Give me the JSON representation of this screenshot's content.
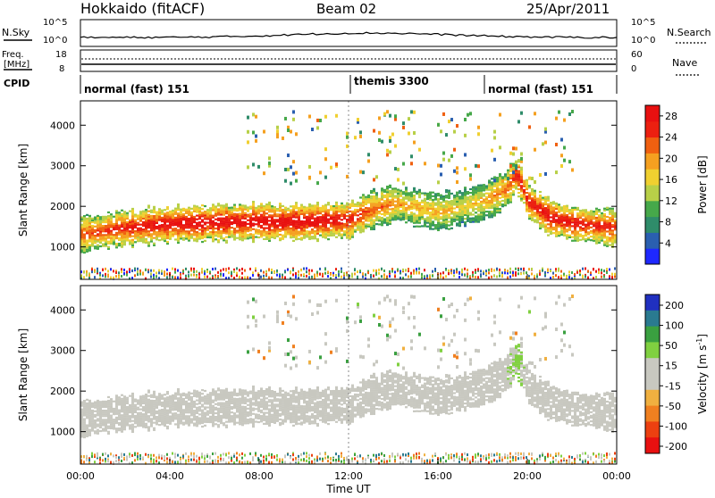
{
  "header": {
    "station": "Hokkaido (fitACF)",
    "beam": "Beam 02",
    "date": "25/Apr/2011"
  },
  "top_panel": {
    "left_label": "N.Sky",
    "left_ticks": [
      "10^5",
      "10^0"
    ],
    "right_ticks": [
      "10^5",
      "10^0"
    ],
    "right_label": "N.Search"
  },
  "freq_panel": {
    "left_label_1": "Freq.",
    "left_label_2": "[MHz]",
    "left_ticks": [
      "18",
      "8"
    ],
    "right_ticks": [
      "60",
      "0"
    ],
    "right_label": "Nave"
  },
  "cpid": {
    "label": "CPID",
    "segments": [
      {
        "label": "normal (fast) 151",
        "start_h": 0
      },
      {
        "label": "themis 3300",
        "start_h": 12
      },
      {
        "label": "normal (fast) 151",
        "start_h": 18
      }
    ]
  },
  "colors": {
    "power_scale": [
      "#1e28ff",
      "#2a5fb0",
      "#2f8c6a",
      "#46a84a",
      "#b8d048",
      "#f0d030",
      "#f5a020",
      "#f06010",
      "#ec2010",
      "#e81010"
    ],
    "velocity_scale": [
      "#e81010",
      "#ec4010",
      "#f08020",
      "#f0b040",
      "#c8c8c0",
      "#c8c8c0",
      "#80d040",
      "#3aa040",
      "#2a7a90",
      "#2030c0"
    ]
  },
  "chart_data": [
    {
      "type": "heatmap",
      "title": "",
      "xlabel": "Time UT",
      "ylabel": "Slant Range [km]",
      "xlim": [
        0,
        24
      ],
      "ylim": [
        200,
        4600
      ],
      "x_ticks": [
        "00:00",
        "04:00",
        "08:00",
        "12:00",
        "16:00",
        "20:00",
        "00:00"
      ],
      "y_ticks": [
        "1000",
        "2000",
        "3000",
        "4000"
      ],
      "colorbar": {
        "label": "Power [dB]",
        "ticks": [
          "28",
          "24",
          "20",
          "16",
          "12",
          "8",
          "4"
        ],
        "range": [
          0,
          30
        ]
      },
      "main_echo_band": {
        "hours": [
          0,
          2,
          4,
          6,
          8,
          10,
          12,
          13,
          14,
          15,
          16,
          17,
          18,
          19,
          19.5,
          20,
          21,
          22,
          24
        ],
        "center_km": [
          1300,
          1450,
          1550,
          1580,
          1600,
          1600,
          1650,
          1900,
          2050,
          1950,
          1850,
          1950,
          2100,
          2400,
          2800,
          2100,
          1700,
          1550,
          1450
        ],
        "power_db": [
          22,
          26,
          28,
          28,
          29,
          29,
          27,
          22,
          20,
          18,
          18,
          16,
          18,
          22,
          26,
          26,
          28,
          27,
          24
        ]
      }
    },
    {
      "type": "heatmap",
      "title": "",
      "xlabel": "Time UT",
      "ylabel": "Slant Range [km]",
      "xlim": [
        0,
        24
      ],
      "ylim": [
        200,
        4600
      ],
      "x_ticks": [
        "00:00",
        "04:00",
        "08:00",
        "12:00",
        "16:00",
        "20:00",
        "00:00"
      ],
      "y_ticks": [
        "1000",
        "2000",
        "3000",
        "4000"
      ],
      "colorbar": {
        "label": "Velocity [m s",
        "label_sup": "-1",
        "label_end": "]",
        "ticks": [
          "200",
          "100",
          "50",
          "15",
          "-15",
          "-50",
          "-100",
          "-200"
        ],
        "range": [
          -250,
          250
        ]
      },
      "main_echo_band": {
        "hours": [
          0,
          2,
          4,
          6,
          8,
          10,
          12,
          13,
          14,
          15,
          16,
          17,
          18,
          19,
          19.5,
          20,
          21,
          22,
          24
        ],
        "center_km": [
          1300,
          1450,
          1550,
          1580,
          1600,
          1600,
          1650,
          1900,
          2050,
          1950,
          1850,
          1950,
          2100,
          2400,
          2800,
          2100,
          1700,
          1550,
          1450
        ],
        "velocity_ms": [
          0,
          0,
          0,
          0,
          0,
          0,
          0,
          0,
          0,
          0,
          0,
          0,
          10,
          40,
          60,
          30,
          0,
          0,
          0
        ]
      }
    }
  ]
}
